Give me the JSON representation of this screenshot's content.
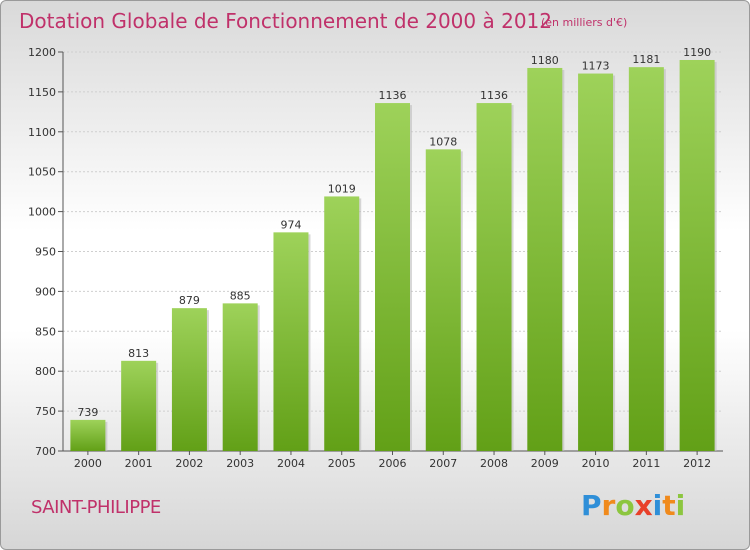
{
  "title": "Dotation Globale de Fonctionnement de 2000 à 2012",
  "unit": "(en milliers d'€)",
  "commune": "SAINT-PHILIPPE",
  "logo": {
    "text": "Proxiti",
    "letters": [
      {
        "ch": "P",
        "color": "#2f8fd8"
      },
      {
        "ch": "r",
        "color": "#f08a1c"
      },
      {
        "ch": "o",
        "color": "#8cc63f"
      },
      {
        "ch": "x",
        "color": "#e8402a"
      },
      {
        "ch": "i",
        "color": "#2f8fd8"
      },
      {
        "ch": "t",
        "color": "#f08a1c"
      },
      {
        "ch": "i",
        "color": "#8cc63f"
      }
    ]
  },
  "chart_data": {
    "type": "bar",
    "categories": [
      "2000",
      "2001",
      "2002",
      "2003",
      "2004",
      "2005",
      "2006",
      "2007",
      "2008",
      "2009",
      "2010",
      "2011",
      "2012"
    ],
    "values": [
      739,
      813,
      879,
      885,
      974,
      1019,
      1136,
      1078,
      1136,
      1180,
      1173,
      1181,
      1190
    ],
    "ylim": [
      700,
      1200
    ],
    "yticks": [
      700,
      750,
      800,
      850,
      900,
      950,
      1000,
      1050,
      1100,
      1150,
      1200
    ],
    "grid": true,
    "bar_color_top": "#9ed25a",
    "bar_color_bottom": "#62a017"
  }
}
